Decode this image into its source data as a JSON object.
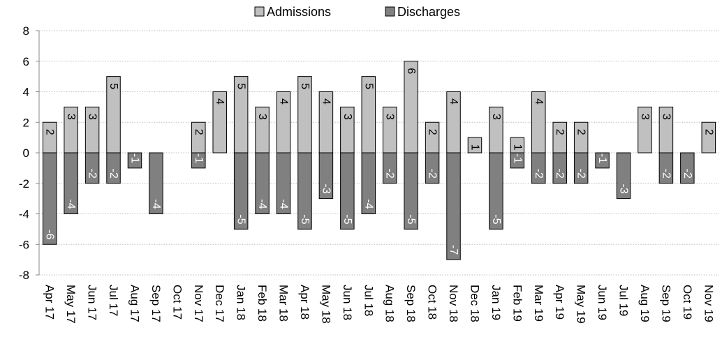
{
  "chart_data": {
    "type": "bar",
    "title": "",
    "xlabel": "",
    "ylabel": "",
    "ylim": [
      -8,
      8
    ],
    "yticks": [
      -8,
      -6,
      -4,
      -2,
      0,
      2,
      4,
      6,
      8
    ],
    "grid": true,
    "legend_position": "top-center",
    "categories": [
      "Apr 17",
      "May 17",
      "Jun 17",
      "Jul 17",
      "Aug 17",
      "Sep 17",
      "Oct 17",
      "Nov 17",
      "Dec 17",
      "Jan 18",
      "Feb 18",
      "Mar 18",
      "Apr 18",
      "May 18",
      "Jun 18",
      "Jul 18",
      "Aug 18",
      "Sep 18",
      "Oct 18",
      "Nov 18",
      "Dec 18",
      "Jan 19",
      "Feb 19",
      "Mar 19",
      "Apr 19",
      "May 19",
      "Jun 19",
      "Jul 19",
      "Aug 19",
      "Sep 19",
      "Oct 19",
      "Nov 19"
    ],
    "series": [
      {
        "name": "Admissions",
        "color": "#c0c0c0",
        "label_color": "#000000",
        "values": [
          2,
          3,
          3,
          5,
          0,
          0,
          0,
          2,
          4,
          5,
          3,
          4,
          5,
          4,
          3,
          5,
          3,
          6,
          2,
          4,
          1,
          3,
          1,
          4,
          2,
          2,
          0,
          0,
          3,
          3,
          0,
          2
        ]
      },
      {
        "name": "Discharges",
        "color": "#808080",
        "label_color": "#ffffff",
        "values": [
          -6,
          -4,
          -2,
          -2,
          -1,
          -4,
          0,
          -1,
          0,
          -5,
          -4,
          -4,
          -5,
          -3,
          -5,
          -4,
          -2,
          -5,
          -2,
          -7,
          0,
          -5,
          -1,
          -2,
          -2,
          -2,
          -1,
          -3,
          0,
          -2,
          -2,
          0
        ]
      }
    ]
  }
}
